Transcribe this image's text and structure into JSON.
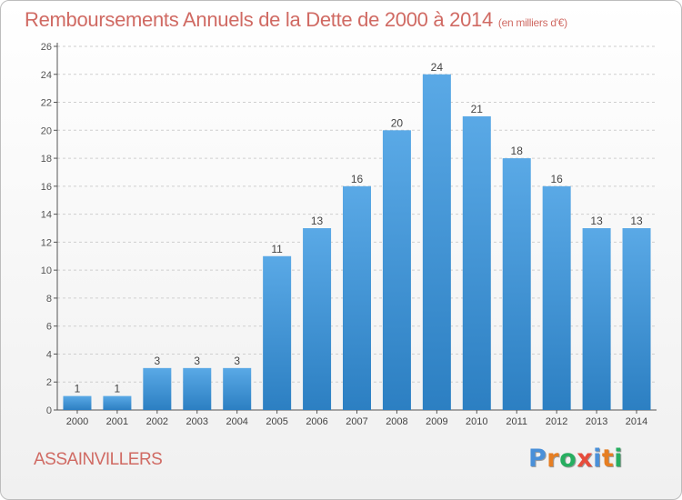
{
  "title": "Remboursements Annuels de la Dette de 2000 à 2014",
  "unit": "(en milliers d'€)",
  "commune": "ASSAINVILLERS",
  "logo": {
    "text": "Proxiti",
    "letters": [
      {
        "ch": "P",
        "color": "#4a90d9"
      },
      {
        "ch": "r",
        "color": "#e67e22"
      },
      {
        "ch": "o",
        "color": "#27ae60"
      },
      {
        "ch": "x",
        "color": "#e74c3c"
      },
      {
        "ch": "i",
        "color": "#4a90d9"
      },
      {
        "ch": "t",
        "color": "#e67e22"
      },
      {
        "ch": "i",
        "color": "#27ae60"
      }
    ]
  },
  "colors": {
    "bar_top": "#5aa9e6",
    "bar_bottom": "#2c7fc2",
    "title": "#d06a63",
    "grid": "#cfcfcf"
  },
  "chart_data": {
    "type": "bar",
    "categories": [
      "2000",
      "2001",
      "2002",
      "2003",
      "2004",
      "2005",
      "2006",
      "2007",
      "2008",
      "2009",
      "2010",
      "2011",
      "2012",
      "2013",
      "2014"
    ],
    "values": [
      1,
      1,
      3,
      3,
      3,
      11,
      13,
      16,
      20,
      24,
      21,
      18,
      16,
      13,
      13
    ],
    "data_labels": [
      "1",
      "1",
      "3",
      "3",
      "3",
      "11",
      "13",
      "16",
      "20",
      "24",
      "21",
      "18",
      "16",
      "13",
      "13"
    ],
    "yticks": [
      "0",
      "2",
      "4",
      "6",
      "8",
      "10",
      "12",
      "14",
      "16",
      "18",
      "20",
      "22",
      "24",
      "26"
    ],
    "ylim": [
      0,
      26
    ],
    "grid": "horizontal dashed"
  }
}
